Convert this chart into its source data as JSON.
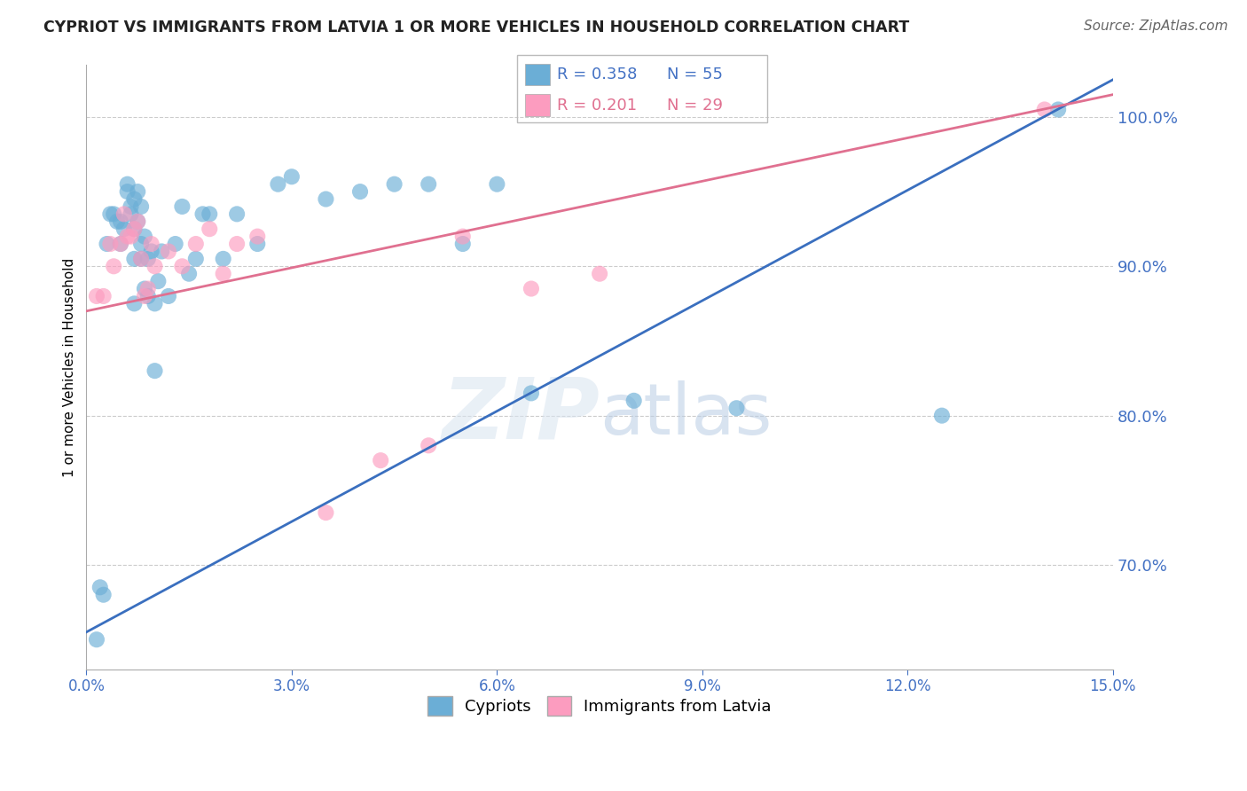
{
  "title": "CYPRIOT VS IMMIGRANTS FROM LATVIA 1 OR MORE VEHICLES IN HOUSEHOLD CORRELATION CHART",
  "source": "Source: ZipAtlas.com",
  "ylabel": "1 or more Vehicles in Household",
  "legend_label1": "Cypriots",
  "legend_label2": "Immigrants from Latvia",
  "R1": 0.358,
  "N1": 55,
  "R2": 0.201,
  "N2": 29,
  "blue_color": "#6baed6",
  "pink_color": "#fc9cbf",
  "blue_line_color": "#3a6fbf",
  "pink_line_color": "#e07090",
  "xlim": [
    0.0,
    15.0
  ],
  "ylim": [
    63.0,
    103.5
  ],
  "yticks": [
    70.0,
    80.0,
    90.0,
    100.0
  ],
  "xticks": [
    0.0,
    3.0,
    6.0,
    9.0,
    12.0,
    15.0
  ],
  "blue_line_x": [
    0.0,
    15.0
  ],
  "blue_line_y": [
    65.5,
    102.5
  ],
  "pink_line_x": [
    0.0,
    15.0
  ],
  "pink_line_y": [
    87.0,
    101.5
  ],
  "blue_x": [
    0.15,
    0.2,
    0.25,
    0.3,
    0.35,
    0.4,
    0.45,
    0.5,
    0.5,
    0.55,
    0.6,
    0.6,
    0.65,
    0.65,
    0.7,
    0.7,
    0.7,
    0.7,
    0.75,
    0.75,
    0.8,
    0.8,
    0.8,
    0.85,
    0.85,
    0.9,
    0.9,
    0.95,
    1.0,
    1.0,
    1.05,
    1.1,
    1.2,
    1.3,
    1.4,
    1.5,
    1.6,
    1.7,
    1.8,
    2.0,
    2.2,
    2.5,
    2.8,
    3.0,
    3.5,
    4.0,
    4.5,
    5.0,
    5.5,
    6.0,
    6.5,
    8.0,
    9.5,
    12.5,
    14.2
  ],
  "blue_y": [
    65.0,
    68.5,
    68.0,
    91.5,
    93.5,
    93.5,
    93.0,
    91.5,
    93.0,
    92.5,
    95.0,
    95.5,
    93.5,
    94.0,
    87.5,
    90.5,
    92.5,
    94.5,
    93.0,
    95.0,
    90.5,
    91.5,
    94.0,
    88.5,
    92.0,
    88.0,
    90.5,
    91.0,
    83.0,
    87.5,
    89.0,
    91.0,
    88.0,
    91.5,
    94.0,
    89.5,
    90.5,
    93.5,
    93.5,
    90.5,
    93.5,
    91.5,
    95.5,
    96.0,
    94.5,
    95.0,
    95.5,
    95.5,
    91.5,
    95.5,
    81.5,
    81.0,
    80.5,
    80.0,
    100.5
  ],
  "pink_x": [
    0.15,
    0.25,
    0.35,
    0.4,
    0.5,
    0.55,
    0.6,
    0.65,
    0.7,
    0.75,
    0.8,
    0.85,
    0.9,
    0.95,
    1.0,
    1.2,
    1.4,
    1.6,
    1.8,
    2.0,
    2.2,
    2.5,
    3.5,
    4.3,
    5.0,
    5.5,
    6.5,
    7.5,
    14.0
  ],
  "pink_y": [
    88.0,
    88.0,
    91.5,
    90.0,
    91.5,
    93.5,
    92.0,
    92.0,
    92.5,
    93.0,
    90.5,
    88.0,
    88.5,
    91.5,
    90.0,
    91.0,
    90.0,
    91.5,
    92.5,
    89.5,
    91.5,
    92.0,
    73.5,
    77.0,
    78.0,
    92.0,
    88.5,
    89.5,
    100.5
  ]
}
